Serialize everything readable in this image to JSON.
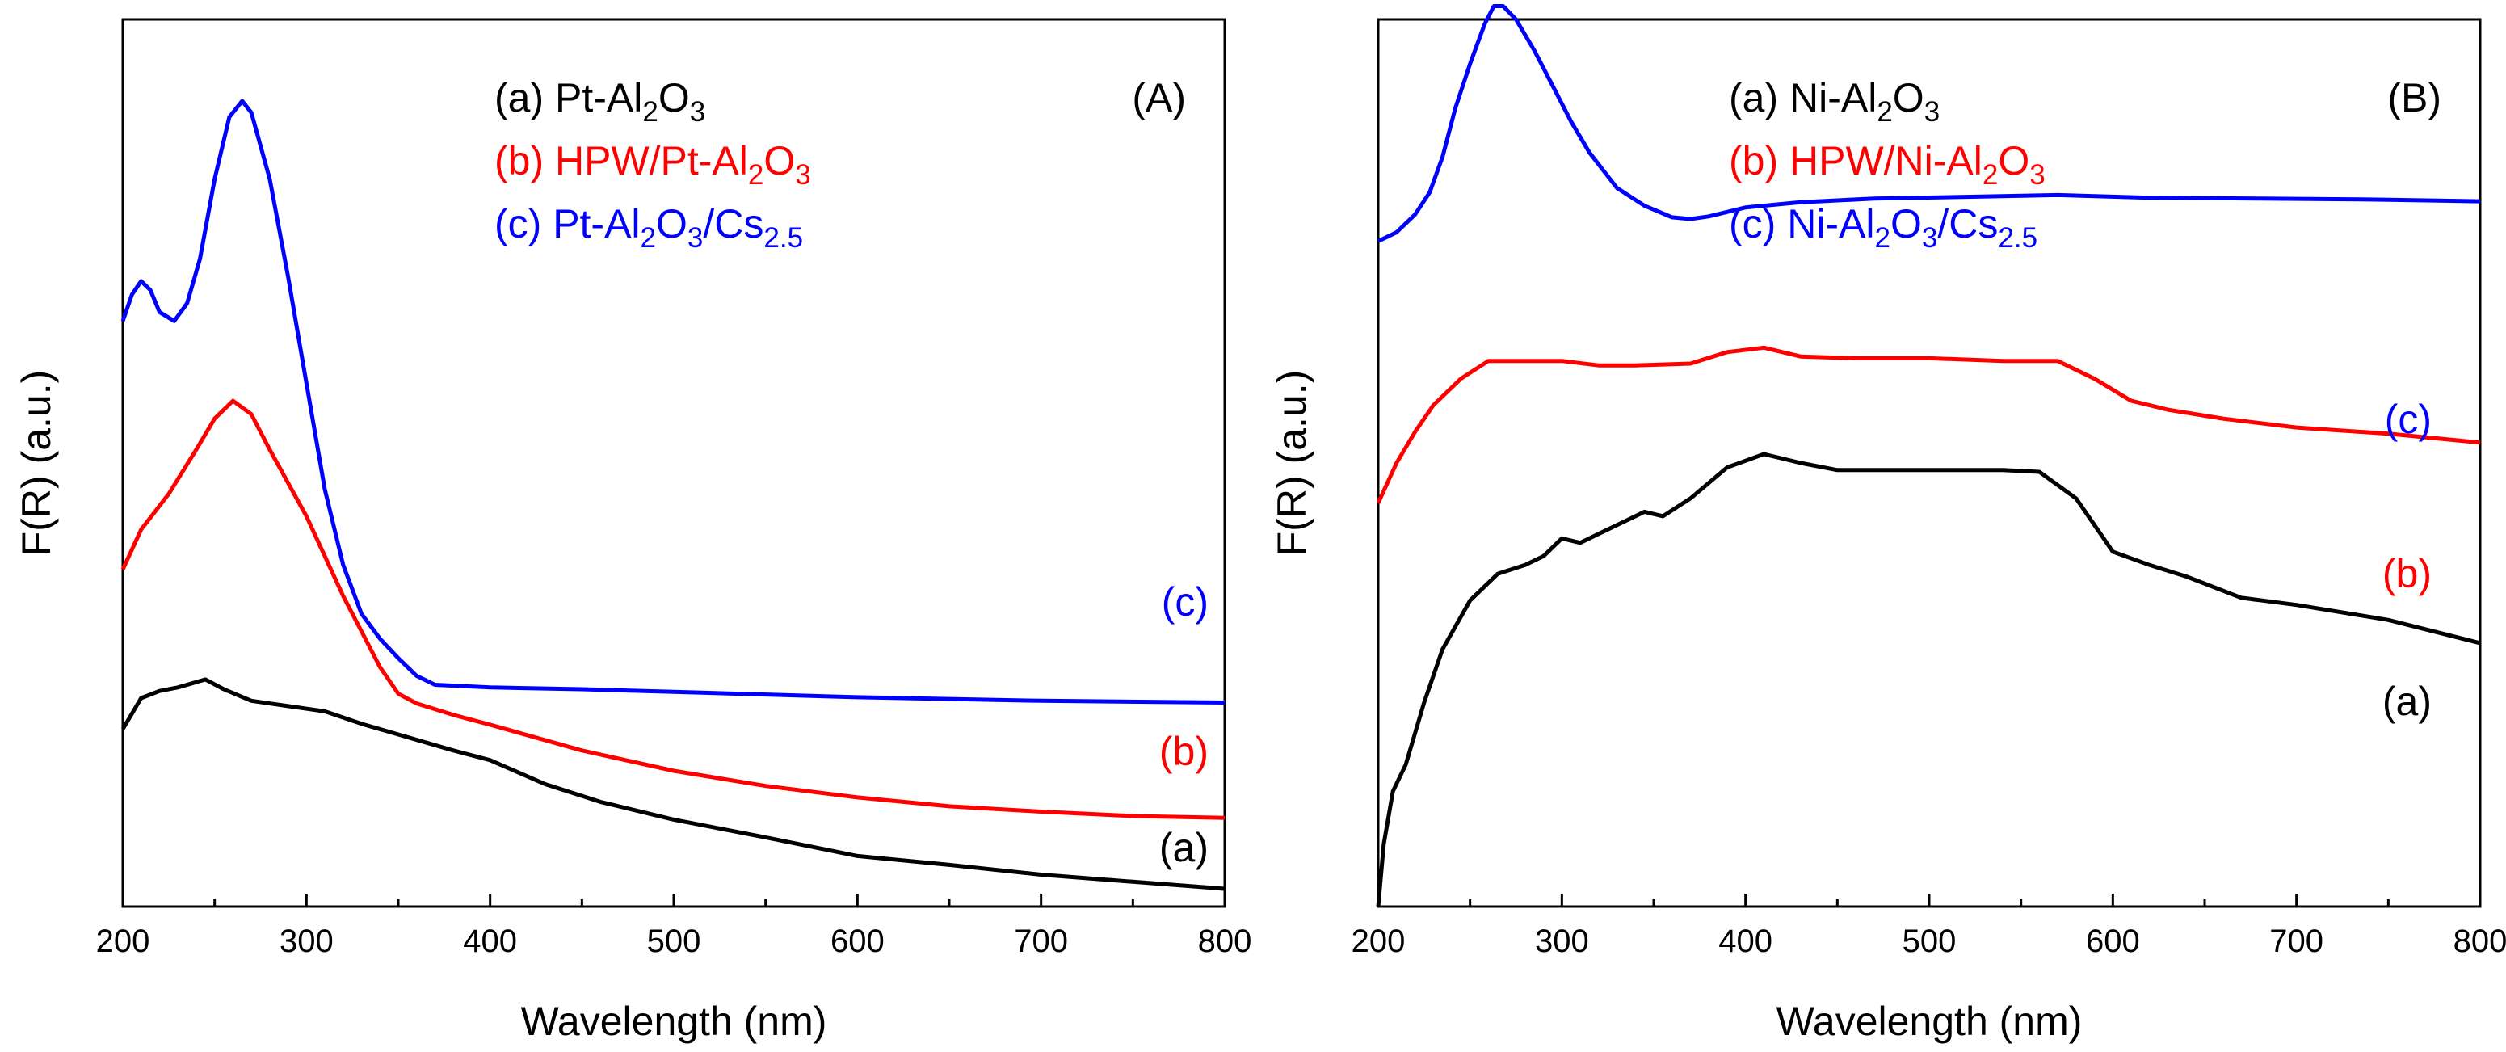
{
  "chart_data": [
    {
      "type": "line",
      "panel_label": "(A)",
      "xlabel": "Wavelength (nm)",
      "ylabel": "F(R) (a.u.)",
      "xlim": [
        200,
        800
      ],
      "ylim": [
        0,
        100
      ],
      "xticks": [
        "200",
        "300",
        "400",
        "500",
        "600",
        "700",
        "800"
      ],
      "y_tick_labels_shown": false,
      "legend_placement": "top-center",
      "legend": [
        {
          "prefix": "(a) Pt-Al",
          "sub1": "2",
          "mid": "O",
          "sub2": "3",
          "suffix": "",
          "sub3": "",
          "color": "#000000"
        },
        {
          "prefix": "(b) HPW/Pt-Al",
          "sub1": "2",
          "mid": "O",
          "sub2": "3",
          "suffix": "",
          "sub3": "",
          "color": "#ff0000"
        },
        {
          "prefix": "(c) Pt-Al",
          "sub1": "2",
          "mid": "O",
          "sub2": "3",
          "suffix": "/Cs",
          "sub3": "2.5",
          "color": "#0000ff"
        }
      ],
      "series": [
        {
          "name": "(a) Pt-Al2O3",
          "label": "(a)",
          "color": "#000000",
          "x": [
            200,
            210,
            220,
            230,
            245,
            255,
            270,
            290,
            310,
            330,
            350,
            380,
            400,
            430,
            460,
            500,
            550,
            600,
            650,
            700,
            750,
            800
          ],
          "y": [
            20.0,
            23.5,
            24.3,
            24.7,
            25.6,
            24.5,
            23.2,
            22.6,
            22.0,
            20.6,
            19.4,
            17.6,
            16.5,
            13.8,
            11.8,
            9.8,
            7.8,
            5.7,
            4.7,
            3.6,
            2.8,
            2.0
          ]
        },
        {
          "name": "(b) HPW/Pt-Al2O3",
          "label": "(b)",
          "color": "#ff0000",
          "x": [
            200,
            210,
            225,
            240,
            250,
            260,
            270,
            280,
            300,
            320,
            340,
            350,
            360,
            380,
            400,
            450,
            500,
            550,
            600,
            650,
            700,
            750,
            800
          ],
          "y": [
            38.0,
            42.5,
            46.5,
            51.5,
            55.0,
            57.0,
            55.5,
            51.5,
            44.0,
            35.0,
            27.0,
            24.0,
            22.9,
            21.6,
            20.5,
            17.6,
            15.3,
            13.6,
            12.3,
            11.3,
            10.7,
            10.2,
            10.0
          ]
        },
        {
          "name": "(c) Pt-Al2O3/Cs2.5",
          "label": "(c)",
          "color": "#0000ff",
          "x": [
            200,
            205,
            210,
            215,
            220,
            228,
            235,
            242,
            250,
            258,
            265,
            270,
            280,
            290,
            300,
            310,
            320,
            330,
            340,
            350,
            360,
            370,
            400,
            450,
            500,
            600,
            700,
            800
          ],
          "y": [
            66.0,
            69.0,
            70.5,
            69.5,
            67.0,
            66.0,
            68.0,
            73.0,
            82.0,
            89.0,
            90.8,
            89.5,
            82.0,
            71.0,
            59.0,
            47.0,
            38.5,
            33.0,
            30.2,
            28.0,
            26.0,
            25.0,
            24.7,
            24.5,
            24.2,
            23.6,
            23.2,
            23.0
          ]
        }
      ]
    },
    {
      "type": "line",
      "panel_label": "(B)",
      "xlabel": "Wavelength (nm)",
      "ylabel": "F(R) (a.u.)",
      "xlim": [
        200,
        800
      ],
      "ylim": [
        0,
        100
      ],
      "xticks": [
        "200",
        "300",
        "400",
        "500",
        "600",
        "700",
        "800"
      ],
      "y_tick_labels_shown": false,
      "legend_placement": "top-center",
      "legend": [
        {
          "prefix": "(a) Ni-Al",
          "sub1": "2",
          "mid": "O",
          "sub2": "3",
          "suffix": "",
          "sub3": "",
          "color": "#000000"
        },
        {
          "prefix": "(b) HPW/Ni-Al",
          "sub1": "2",
          "mid": "O",
          "sub2": "3",
          "suffix": "",
          "sub3": "",
          "color": "#ff0000"
        },
        {
          "prefix": "(c) Ni-Al",
          "sub1": "2",
          "mid": "O",
          "sub2": "3",
          "suffix": "/Cs",
          "sub3": "2.5",
          "color": "#0000ff"
        }
      ],
      "series": [
        {
          "name": "(a) Ni-Al2O3",
          "label": "(a)",
          "color": "#000000",
          "x": [
            200,
            203,
            208,
            215,
            225,
            235,
            250,
            265,
            280,
            290,
            300,
            310,
            320,
            335,
            345,
            355,
            370,
            390,
            410,
            430,
            450,
            500,
            540,
            560,
            580,
            600,
            620,
            640,
            670,
            700,
            750,
            800
          ],
          "y": [
            0.0,
            7.0,
            13.0,
            16.0,
            23.0,
            29.0,
            34.5,
            37.5,
            38.5,
            39.5,
            41.5,
            41.0,
            42.0,
            43.5,
            44.5,
            44.0,
            46.0,
            49.5,
            51.0,
            50.0,
            49.2,
            49.2,
            49.2,
            49.0,
            46.0,
            40.0,
            38.5,
            37.2,
            34.8,
            34.0,
            32.3,
            29.7
          ]
        },
        {
          "name": "(b) HPW/Ni-Al2O3",
          "label": "(b)",
          "color": "#ff0000",
          "x": [
            200,
            210,
            220,
            230,
            245,
            260,
            280,
            300,
            320,
            340,
            370,
            390,
            410,
            430,
            460,
            500,
            540,
            570,
            590,
            610,
            630,
            660,
            700,
            750,
            800
          ],
          "y": [
            45.5,
            50.0,
            53.5,
            56.5,
            59.5,
            61.5,
            61.5,
            61.5,
            61.0,
            61.0,
            61.2,
            62.5,
            63.0,
            62.0,
            61.8,
            61.8,
            61.5,
            61.5,
            59.5,
            57.0,
            56.0,
            55.0,
            54.0,
            53.3,
            52.3
          ]
        },
        {
          "name": "(c) Ni-Al2O3/Cs2.5",
          "label": "(c)",
          "color": "#0000ff",
          "x": [
            200,
            210,
            220,
            228,
            235,
            242,
            250,
            258,
            263,
            268,
            275,
            285,
            295,
            305,
            315,
            330,
            345,
            360,
            370,
            380,
            400,
            430,
            470,
            520,
            570,
            620,
            680,
            740,
            800
          ],
          "y": [
            75.0,
            76.0,
            78.0,
            80.5,
            84.5,
            90.0,
            95.0,
            99.5,
            101.5,
            101.5,
            100.0,
            96.5,
            92.5,
            88.5,
            85.0,
            81.0,
            79.0,
            77.7,
            77.5,
            77.8,
            78.8,
            79.4,
            79.8,
            80.0,
            80.2,
            79.9,
            79.8,
            79.7,
            79.5
          ]
        }
      ]
    }
  ]
}
